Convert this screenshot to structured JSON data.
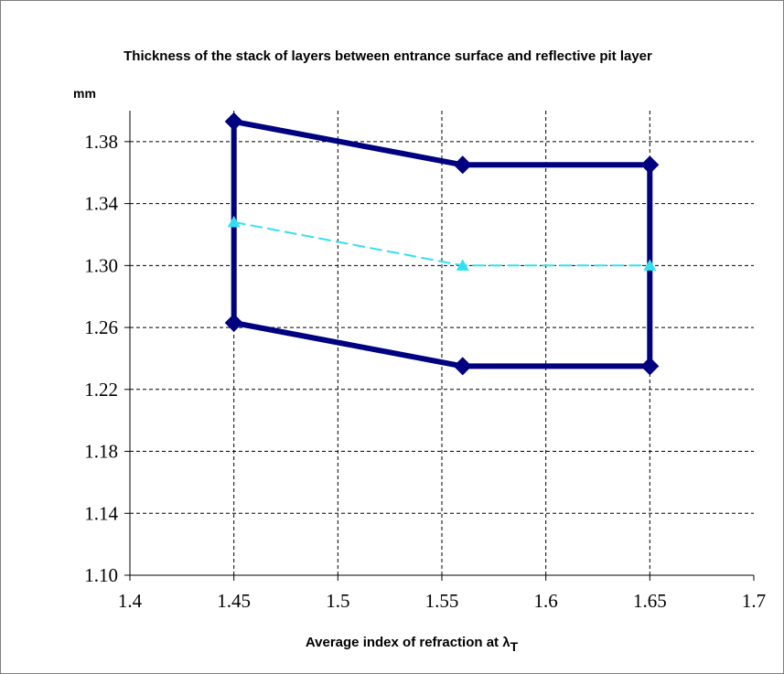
{
  "chart_data": {
    "type": "line",
    "title": "Thickness of the stack of layers between entrance surface and reflective pit layer",
    "y_unit": "mm",
    "xlabel": "Average index of refraction at λ",
    "xlabel_subscript": "T",
    "xlim": [
      1.4,
      1.7
    ],
    "ylim": [
      1.1,
      1.4
    ],
    "x_ticks": [
      "1.4",
      "1.45",
      "1.5",
      "1.55",
      "1.6",
      "1.65",
      "1.7"
    ],
    "x_tick_values": [
      1.4,
      1.45,
      1.5,
      1.55,
      1.6,
      1.65,
      1.7
    ],
    "y_ticks": [
      "1.10",
      "1.14",
      "1.18",
      "1.22",
      "1.26",
      "1.30",
      "1.34",
      "1.38"
    ],
    "y_tick_values": [
      1.1,
      1.14,
      1.18,
      1.22,
      1.26,
      1.3,
      1.34,
      1.38
    ],
    "grid": true,
    "legend": "none",
    "series": [
      {
        "style": "solid-thick",
        "marker": "diamond",
        "color": "#000080",
        "points": [
          [
            1.45,
            1.393
          ],
          [
            1.56,
            1.365
          ],
          [
            1.65,
            1.365
          ],
          [
            1.65,
            1.235
          ],
          [
            1.56,
            1.235
          ],
          [
            1.45,
            1.263
          ],
          [
            1.45,
            1.393
          ]
        ]
      },
      {
        "style": "dashed",
        "marker": "triangle",
        "color": "#33e0f0",
        "points": [
          [
            1.45,
            1.328
          ],
          [
            1.56,
            1.3
          ],
          [
            1.65,
            1.3
          ]
        ]
      }
    ]
  }
}
